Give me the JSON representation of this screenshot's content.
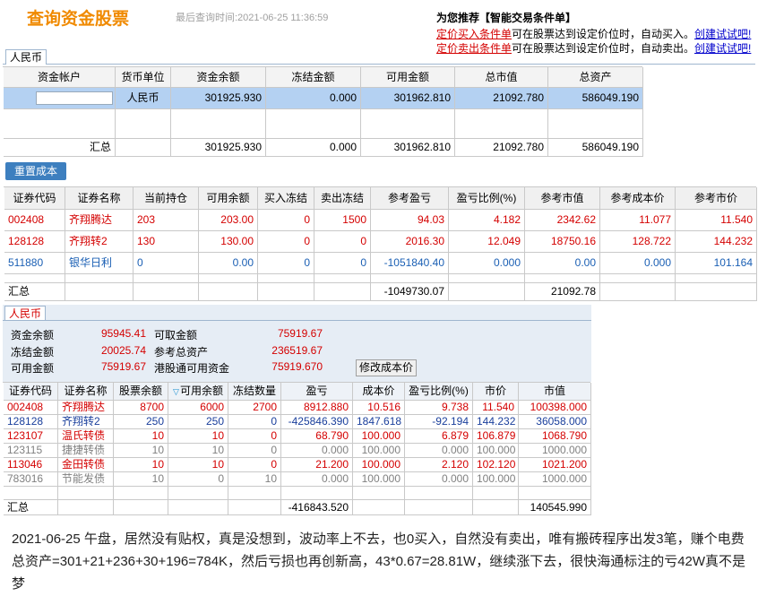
{
  "header": {
    "title": "查询资金股票",
    "last_query": "最后查询时间:2021-06-25 11:36:59",
    "promo_title": "为您推荐【智能交易条件单】",
    "promos": [
      {
        "link": "定价买入条件单",
        "text": "可在股票达到设定价位时，自动买入。",
        "action": "创建试试吧!"
      },
      {
        "link": "定价卖出条件单",
        "text": "可在股票达到设定价位时，自动卖出。",
        "action": "创建试试吧!"
      }
    ]
  },
  "account_tab": "人民币",
  "account_table": {
    "headers": [
      "资金帐户",
      "货币单位",
      "资金余额",
      "冻结金额",
      "可用金额",
      "总市值",
      "总资产"
    ],
    "rows": [
      [
        null,
        "人民币",
        "301925.930",
        "0.000",
        "301962.810",
        "21092.780",
        "586049.190"
      ]
    ],
    "total": [
      "汇总",
      null,
      "301925.930",
      "0.000",
      "301962.810",
      "21092.780",
      "586049.190"
    ]
  },
  "reset_button": "重置成本",
  "positions_table": {
    "headers": [
      "证券代码",
      "证券名称",
      "当前持仓",
      "可用余额",
      "买入冻结",
      "卖出冻结",
      "参考盈亏",
      "盈亏比例(%)",
      "参考市值",
      "参考成本价",
      "参考市价"
    ],
    "rows": [
      {
        "color": "#d40000",
        "cells": [
          "002408",
          "齐翔腾达",
          "203",
          "203.00",
          "0",
          "1500",
          "94.03",
          "4.182",
          "2342.62",
          "11.077",
          "11.540"
        ]
      },
      {
        "color": "#d40000",
        "cells": [
          "128128",
          "齐翔转2",
          "130",
          "130.00",
          "0",
          "0",
          "2016.30",
          "12.049",
          "18750.16",
          "128.722",
          "144.232"
        ]
      },
      {
        "color": "#1a5fb4",
        "cells": [
          "511880",
          "银华日利",
          "0",
          "0.00",
          "0",
          "0",
          "-1051840.40",
          "0.000",
          "0.00",
          "0.000",
          "101.164"
        ]
      }
    ],
    "total": [
      "汇总",
      null,
      null,
      null,
      null,
      null,
      "-1049730.07",
      null,
      "21092.78",
      null,
      null
    ]
  },
  "fund_tab": "人民币",
  "fund_summary": [
    [
      "资金余额",
      "95945.41",
      "可取金额",
      "75919.67"
    ],
    [
      "冻结金额",
      "20025.74",
      "参考总资产",
      "236519.67"
    ],
    [
      "可用金额",
      "75919.67",
      "港股通可用资金",
      "75919.670"
    ]
  ],
  "edit_button": "修改成本价",
  "holdings_table": {
    "headers": [
      "证券代码",
      "证券名称",
      "股票余额",
      "可用余额",
      "冻结数量",
      "盈亏",
      "成本价",
      "盈亏比例(%)",
      "市价",
      "市值"
    ],
    "rows": [
      {
        "color": "#d40000",
        "cells": [
          "002408",
          "齐翔腾达",
          "8700",
          "6000",
          "2700",
          "8912.880",
          "10.516",
          "9.738",
          "11.540",
          "100398.000"
        ]
      },
      {
        "color": "#1a3f9c",
        "cells": [
          "128128",
          "齐翔转2",
          "250",
          "250",
          "0",
          "-425846.390",
          "1847.618",
          "-92.194",
          "144.232",
          "36058.000"
        ]
      },
      {
        "color": "#d40000",
        "cells": [
          "123107",
          "温氏转债",
          "10",
          "10",
          "0",
          "68.790",
          "100.000",
          "6.879",
          "106.879",
          "1068.790"
        ]
      },
      {
        "color": "#808080",
        "cells": [
          "123115",
          "捷捷转债",
          "10",
          "10",
          "0",
          "0.000",
          "100.000",
          "0.000",
          "100.000",
          "1000.000"
        ]
      },
      {
        "color": "#d40000",
        "cells": [
          "113046",
          "金田转债",
          "10",
          "10",
          "0",
          "21.200",
          "100.000",
          "2.120",
          "102.120",
          "1021.200"
        ]
      },
      {
        "color": "#808080",
        "cells": [
          "783016",
          "节能发债",
          "10",
          "0",
          "10",
          "0.000",
          "100.000",
          "0.000",
          "100.000",
          "1000.000"
        ]
      }
    ],
    "total": [
      "汇总",
      null,
      null,
      null,
      null,
      "-416843.520",
      null,
      null,
      null,
      "140545.990"
    ]
  },
  "caption": "2021-06-25 午盘，居然没有贴权，真是没想到，波动率上不去，也0买入，自然没有卖出，唯有搬砖程序出发3笔，赚个电费总资产=301+21+236+30+196=784K，然后亏损也再创新高，43*0.67=28.81W，继续涨下去，很快海通标注的亏42W真不是梦"
}
